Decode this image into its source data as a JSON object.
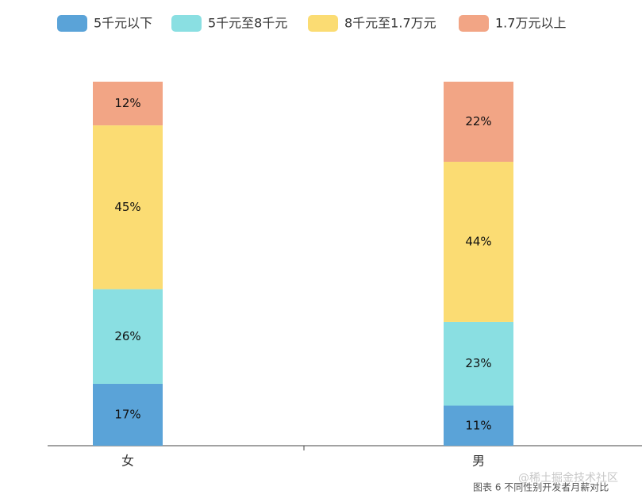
{
  "chart_data": {
    "type": "stacked_bar",
    "categories": [
      "女",
      "男"
    ],
    "series": [
      {
        "name": "5千元以下",
        "color": "#5aa3d8",
        "values": [
          17,
          11
        ],
        "value_labels": [
          "17%",
          "11%"
        ]
      },
      {
        "name": "5千元至8千元",
        "color": "#8adfe2",
        "values": [
          26,
          23
        ],
        "value_labels": [
          "26%",
          "23%"
        ]
      },
      {
        "name": "8千元至1.7万元",
        "color": "#fbdc73",
        "values": [
          45,
          44
        ],
        "value_labels": [
          "45%",
          "44%"
        ]
      },
      {
        "name": "1.7万元以上",
        "color": "#f2a585",
        "values": [
          12,
          22
        ],
        "value_labels": [
          "12%",
          "22%"
        ]
      }
    ],
    "ylim": [
      0,
      100
    ],
    "caption": "图表 6  不同性别开发者月薪对比",
    "watermark": "@稀土掘金技术社区"
  }
}
